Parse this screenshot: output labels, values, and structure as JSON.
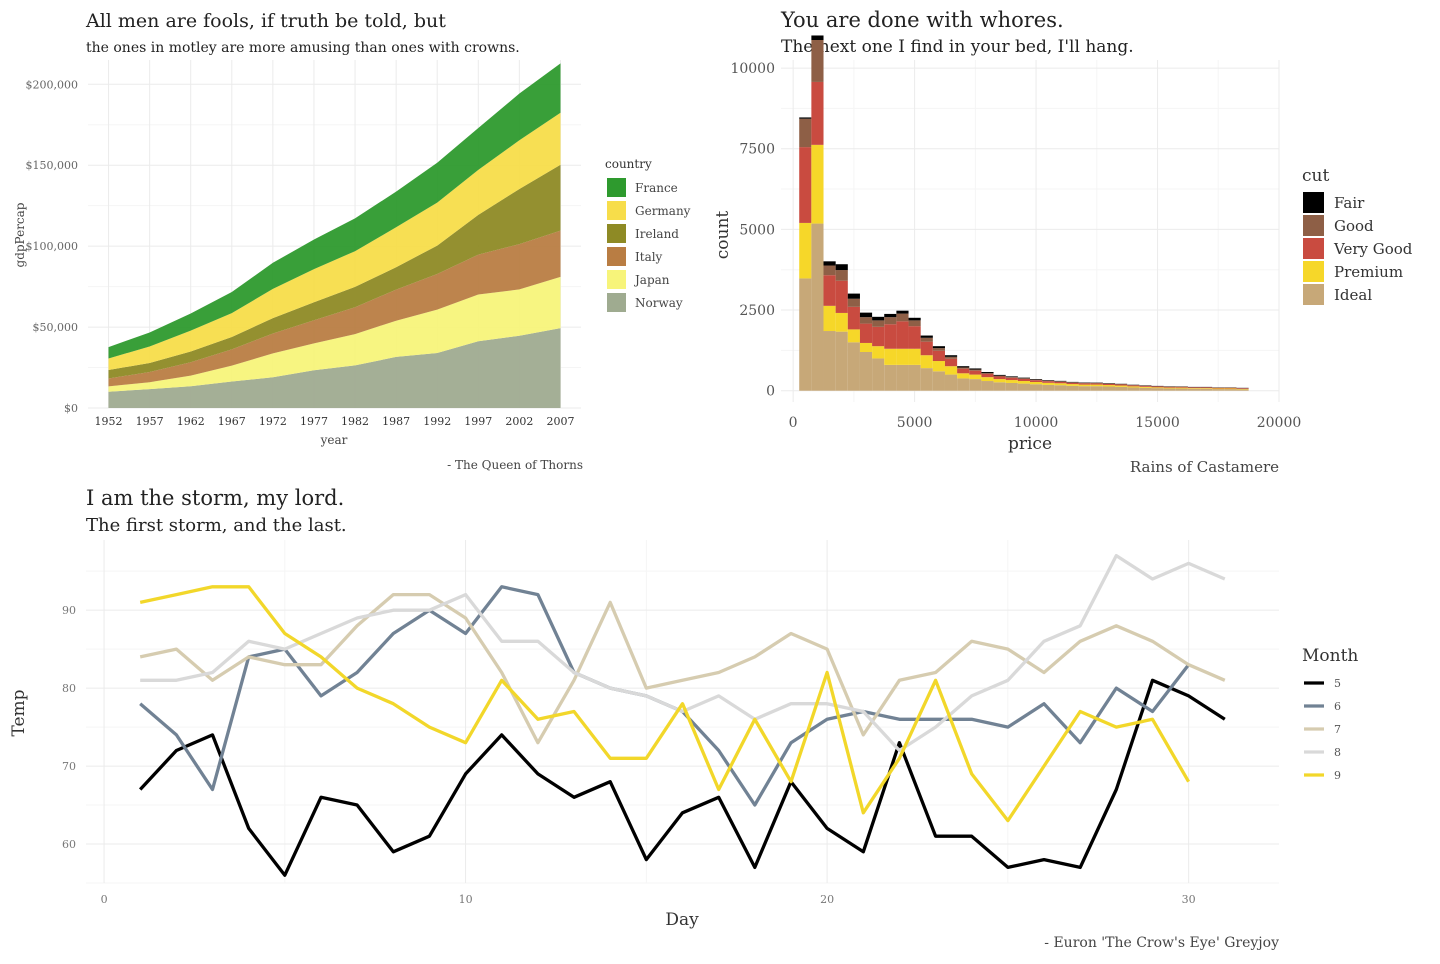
{
  "chart_data": [
    {
      "type": "area",
      "stacked": true,
      "title": "All men are fools, if truth be told, but",
      "subtitle": "the ones in motley are more amusing than ones with crowns.",
      "caption": "- The Queen of Thorns",
      "xlabel": "year",
      "ylabel": "gdpPercap",
      "legend_title": "country",
      "legend_position": "right",
      "x": [
        1952,
        1957,
        1962,
        1967,
        1972,
        1977,
        1982,
        1987,
        1992,
        1997,
        2002,
        2007
      ],
      "x_tick_labels": [
        "1952",
        "1957",
        "1962",
        "1967",
        "1972",
        "1977",
        "1982",
        "1987",
        "1992",
        "1997",
        "2002",
        "2007"
      ],
      "ylim": [
        0,
        215000
      ],
      "y_ticks": [
        0,
        50000,
        100000,
        150000,
        200000
      ],
      "y_tick_labels": [
        "$0",
        "$50,000",
        "$100,000",
        "$150,000",
        "$200,000"
      ],
      "series": [
        {
          "name": "France",
          "color": "#2e9a2e",
          "values": [
            7030,
            8660,
            10560,
            13000,
            16110,
            18290,
            20290,
            22070,
            24700,
            25890,
            28930,
            30470
          ]
        },
        {
          "name": "Germany",
          "color": "#f7dd4a",
          "values": [
            7140,
            10190,
            12900,
            14750,
            18020,
            20510,
            22030,
            24640,
            26510,
            27790,
            30040,
            32170
          ]
        },
        {
          "name": "Ireland",
          "color": "#8e8a25",
          "values": [
            5210,
            5600,
            6630,
            7660,
            9530,
            11150,
            12620,
            13870,
            17560,
            24520,
            34080,
            40680
          ]
        },
        {
          "name": "Italy",
          "color": "#b97d43",
          "values": [
            4930,
            6250,
            8240,
            10020,
            12270,
            14260,
            16540,
            19210,
            22010,
            24680,
            27970,
            28570
          ]
        },
        {
          "name": "Japan",
          "color": "#f7f47a",
          "values": [
            3220,
            4320,
            6580,
            9850,
            14780,
            16610,
            19380,
            22380,
            26820,
            28820,
            28600,
            31660
          ]
        },
        {
          "name": "Norway",
          "color": "#9fab90",
          "values": [
            10100,
            11650,
            13450,
            16360,
            18970,
            23310,
            26300,
            31540,
            33970,
            41280,
            44680,
            49360
          ]
        }
      ]
    },
    {
      "type": "bar",
      "stacked": true,
      "title": "You are done with whores.",
      "subtitle": "The next one I find in your bed, I'll hang.",
      "caption": "Rains of Castamere",
      "xlabel": "price",
      "ylabel": "count",
      "legend_title": "cut",
      "legend_position": "right",
      "bin_width": 500,
      "bin_start": [
        250,
        750,
        1250,
        1750,
        2250,
        2750,
        3250,
        3750,
        4250,
        4750,
        5250,
        5750,
        6250,
        6750,
        7250,
        7750,
        8250,
        8750,
        9250,
        9750,
        10250,
        10750,
        11250,
        11750,
        12250,
        12750,
        13250,
        13750,
        14250,
        14750,
        15250,
        15750,
        16250,
        16750,
        17250,
        17750,
        18250
      ],
      "xlim": [
        -500,
        20000
      ],
      "x_ticks": [
        0,
        5000,
        10000,
        15000,
        20000
      ],
      "x_tick_labels": [
        "0",
        "5000",
        "10000",
        "15000",
        "20000"
      ],
      "ylim": [
        -350,
        10250
      ],
      "y_ticks": [
        0,
        2500,
        5000,
        7500,
        10000
      ],
      "y_tick_labels": [
        "0",
        "2500",
        "5000",
        "7500",
        "10000"
      ],
      "series": [
        {
          "name": "Ideal",
          "color": "#c7a878",
          "values": [
            3480,
            5180,
            1850,
            1830,
            1500,
            1200,
            1000,
            800,
            800,
            800,
            700,
            600,
            500,
            380,
            360,
            300,
            260,
            240,
            220,
            200,
            180,
            170,
            150,
            140,
            140,
            130,
            120,
            100,
            90,
            80,
            70,
            70,
            60,
            60,
            50,
            50,
            40
          ]
        },
        {
          "name": "Premium",
          "color": "#f6d729",
          "values": [
            1720,
            2440,
            780,
            580,
            400,
            280,
            380,
            500,
            500,
            500,
            400,
            320,
            260,
            160,
            140,
            120,
            100,
            90,
            80,
            70,
            65,
            60,
            55,
            50,
            50,
            45,
            40,
            35,
            30,
            25,
            25,
            25,
            20,
            20,
            20,
            20,
            15
          ]
        },
        {
          "name": "Very Good",
          "color": "#c94b40",
          "values": [
            2350,
            1950,
            950,
            1000,
            700,
            600,
            600,
            760,
            850,
            700,
            420,
            320,
            230,
            140,
            120,
            100,
            80,
            70,
            65,
            55,
            50,
            45,
            40,
            38,
            36,
            34,
            32,
            30,
            28,
            26,
            24,
            24,
            22,
            22,
            20,
            20,
            20
          ]
        },
        {
          "name": "Good",
          "color": "#8e5f46",
          "values": [
            880,
            1300,
            300,
            330,
            250,
            200,
            200,
            220,
            240,
            180,
            120,
            80,
            60,
            40,
            35,
            30,
            25,
            22,
            20,
            18,
            16,
            15,
            14,
            13,
            12,
            12,
            11,
            10,
            10,
            9,
            9,
            8,
            8,
            8,
            7,
            7,
            7
          ]
        },
        {
          "name": "Fair",
          "color": "#000000",
          "values": [
            40,
            140,
            130,
            180,
            160,
            140,
            110,
            100,
            90,
            80,
            70,
            60,
            50,
            40,
            35,
            30,
            25,
            22,
            20,
            18,
            16,
            15,
            14,
            13,
            12,
            12,
            11,
            10,
            10,
            9,
            9,
            8,
            8,
            8,
            7,
            7,
            7
          ]
        }
      ]
    },
    {
      "type": "line",
      "title": "I am the storm, my lord.",
      "subtitle": "The first storm, and the last.",
      "caption": "- Euron 'The Crow's Eye' Greyjoy",
      "xlabel": "Day",
      "ylabel": "Temp",
      "legend_title": "Month",
      "legend_position": "right",
      "xlim": [
        -0.5,
        32.5
      ],
      "x_ticks": [
        0,
        10,
        20,
        30
      ],
      "x_tick_labels": [
        "0",
        "10",
        "20",
        "30"
      ],
      "ylim": [
        55,
        99
      ],
      "y_ticks": [
        60,
        70,
        80,
        90
      ],
      "y_tick_labels": [
        "60",
        "70",
        "80",
        "90"
      ],
      "series": [
        {
          "name": "5",
          "color": "#000000",
          "x": [
            1,
            2,
            3,
            4,
            5,
            6,
            7,
            8,
            9,
            10,
            11,
            12,
            13,
            14,
            15,
            16,
            17,
            18,
            19,
            20,
            21,
            22,
            23,
            24,
            25,
            26,
            27,
            28,
            29,
            30,
            31
          ],
          "values": [
            67,
            72,
            74,
            62,
            56,
            66,
            65,
            59,
            61,
            69,
            74,
            69,
            66,
            68,
            58,
            64,
            66,
            57,
            68,
            62,
            59,
            73,
            61,
            61,
            57,
            58,
            57,
            67,
            81,
            79,
            76
          ]
        },
        {
          "name": "6",
          "color": "#718294",
          "x": [
            1,
            2,
            3,
            4,
            5,
            6,
            7,
            8,
            9,
            10,
            11,
            12,
            13,
            14,
            15,
            16,
            17,
            18,
            19,
            20,
            21,
            22,
            23,
            24,
            25,
            26,
            27,
            28,
            29,
            30
          ],
          "values": [
            78,
            74,
            67,
            84,
            85,
            79,
            82,
            87,
            90,
            87,
            93,
            92,
            82,
            80,
            79,
            77,
            72,
            65,
            73,
            76,
            77,
            76,
            76,
            76,
            75,
            78,
            73,
            80,
            77,
            83
          ]
        },
        {
          "name": "7",
          "color": "#d6ccb0",
          "x": [
            1,
            2,
            3,
            4,
            5,
            6,
            7,
            8,
            9,
            10,
            11,
            12,
            13,
            14,
            15,
            16,
            17,
            18,
            19,
            20,
            21,
            22,
            23,
            24,
            25,
            26,
            27,
            28,
            29,
            30,
            31
          ],
          "values": [
            84,
            85,
            81,
            84,
            83,
            83,
            88,
            92,
            92,
            89,
            82,
            73,
            81,
            91,
            80,
            81,
            82,
            84,
            87,
            85,
            74,
            81,
            82,
            86,
            85,
            82,
            86,
            88,
            86,
            83,
            81
          ]
        },
        {
          "name": "8",
          "color": "#d9d9d9",
          "x": [
            1,
            2,
            3,
            4,
            5,
            6,
            7,
            8,
            9,
            10,
            11,
            12,
            13,
            14,
            15,
            16,
            17,
            18,
            19,
            20,
            21,
            22,
            23,
            24,
            25,
            26,
            27,
            28,
            29,
            30,
            31
          ],
          "values": [
            81,
            81,
            82,
            86,
            85,
            87,
            89,
            90,
            90,
            92,
            86,
            86,
            82,
            80,
            79,
            77,
            79,
            76,
            78,
            78,
            77,
            72,
            75,
            79,
            81,
            86,
            88,
            97,
            94,
            96,
            94
          ]
        },
        {
          "name": "9",
          "color": "#f2d72a",
          "x": [
            1,
            2,
            3,
            4,
            5,
            6,
            7,
            8,
            9,
            10,
            11,
            12,
            13,
            14,
            15,
            16,
            17,
            18,
            19,
            20,
            21,
            22,
            23,
            24,
            25,
            26,
            27,
            28,
            29,
            30
          ],
          "values": [
            91,
            92,
            93,
            93,
            87,
            84,
            80,
            78,
            75,
            73,
            81,
            76,
            77,
            71,
            71,
            78,
            67,
            76,
            68,
            82,
            64,
            71,
            81,
            69,
            63,
            70,
            77,
            75,
            76,
            68
          ]
        }
      ]
    }
  ]
}
